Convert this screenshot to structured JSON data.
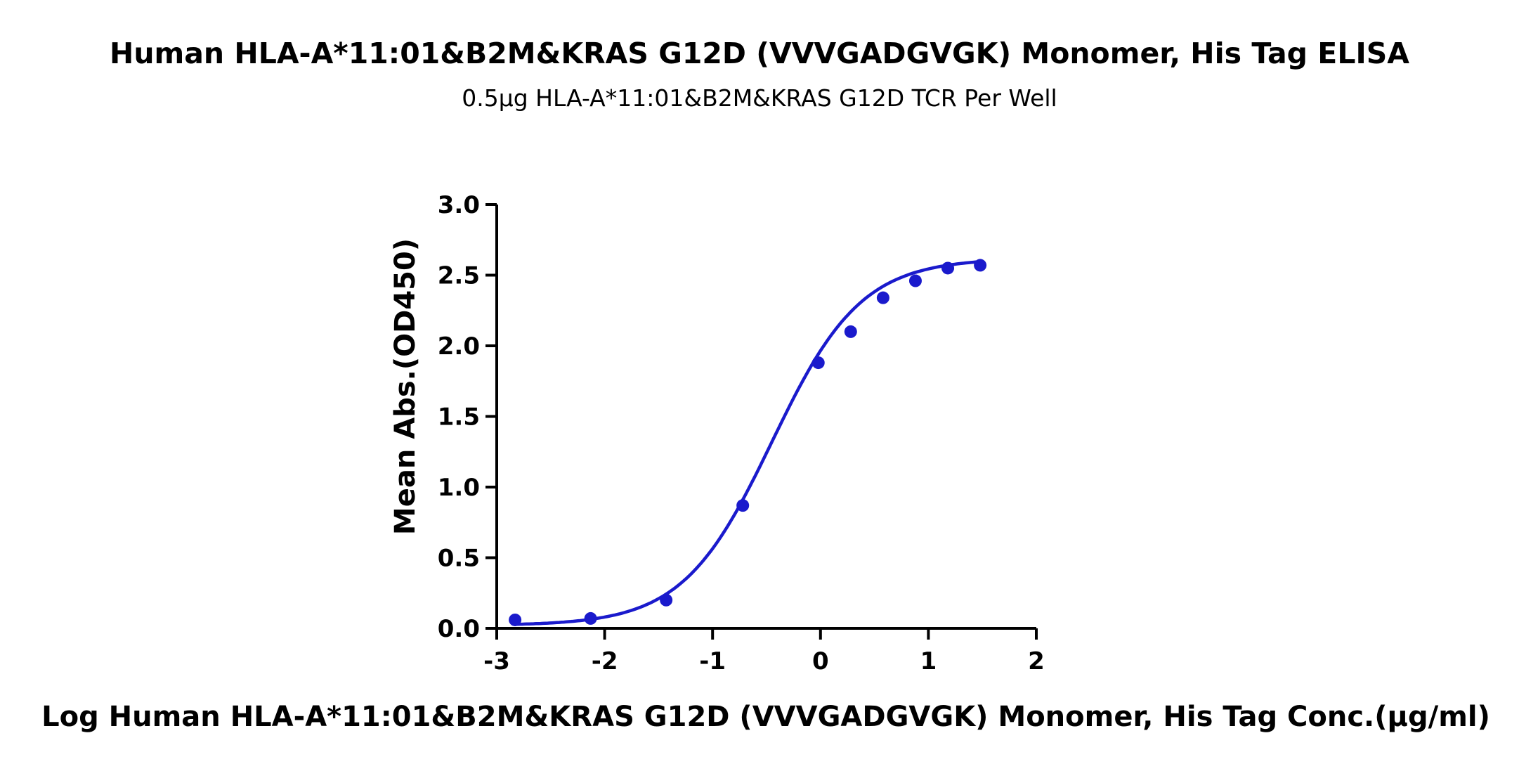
{
  "chart_data": {
    "type": "scatter",
    "title": "Human HLA-A*11:01&B2M&KRAS G12D (VVVGADGVGK) Monomer, His Tag ELISA",
    "subtitle": "0.5μg HLA-A*11:01&B2M&KRAS G12D TCR Per Well",
    "xlabel": "Log Human HLA-A*11:01&B2M&KRAS G12D (VVVGADGVGK) Monomer, His  Tag Conc.(μg/ml)",
    "ylabel": "Mean Abs.(OD450)",
    "xlim": [
      -3,
      2
    ],
    "ylim": [
      0,
      3.0
    ],
    "x_ticks": [
      "-3",
      "-2",
      "-1",
      "0",
      "1",
      "2"
    ],
    "y_ticks": [
      "0.0",
      "0.5",
      "1.0",
      "1.5",
      "2.0",
      "2.5",
      "3.0"
    ],
    "series": [
      {
        "x": [
          -2.83,
          -2.13,
          -1.43,
          -0.72,
          -0.02,
          0.28,
          0.58,
          0.88,
          1.18,
          1.48
        ],
        "y": [
          0.06,
          0.07,
          0.2,
          0.87,
          1.88,
          2.1,
          2.34,
          2.46,
          2.55,
          2.57
        ]
      }
    ],
    "fit_curve": "4PL",
    "grid": false,
    "color": "#1a1acc"
  }
}
